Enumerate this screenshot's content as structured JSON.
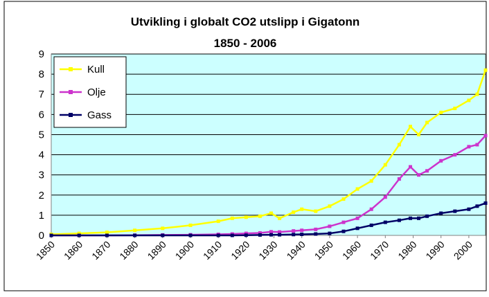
{
  "chart_data": {
    "type": "line",
    "title": "Utvikling i globalt CO2 utslipp i Gigatonn",
    "subtitle": "1850  - 2006",
    "xlabel": "",
    "ylabel": "",
    "ylim": [
      0,
      9
    ],
    "yticks": [
      "0",
      "1",
      "2",
      "3",
      "4",
      "5",
      "6",
      "7",
      "8",
      "9"
    ],
    "xlim": [
      1850,
      2006
    ],
    "xticks": [
      "1850",
      "1860",
      "1870",
      "1880",
      "1890",
      "1900",
      "1910",
      "1920",
      "1930",
      "1940",
      "1950",
      "1960",
      "1970",
      "1980",
      "1990",
      "2000"
    ],
    "grid": true,
    "legend_position": "top-left",
    "plot_background": "#ccffff",
    "x": [
      1850,
      1860,
      1870,
      1880,
      1890,
      1900,
      1910,
      1915,
      1920,
      1925,
      1929,
      1932,
      1937,
      1940,
      1945,
      1950,
      1955,
      1960,
      1965,
      1970,
      1975,
      1979,
      1982,
      1985,
      1990,
      1995,
      2000,
      2003,
      2006
    ],
    "series": [
      {
        "name": "Kull",
        "color": "#ffff00",
        "values": [
          0.05,
          0.1,
          0.15,
          0.25,
          0.35,
          0.5,
          0.7,
          0.85,
          0.9,
          0.95,
          1.1,
          0.85,
          1.15,
          1.3,
          1.2,
          1.45,
          1.8,
          2.3,
          2.7,
          3.5,
          4.5,
          5.4,
          5.0,
          5.6,
          6.1,
          6.3,
          6.7,
          7.0,
          8.2
        ]
      },
      {
        "name": "Olje",
        "color": "#cc33cc",
        "values": [
          0,
          0,
          0,
          0.01,
          0.02,
          0.03,
          0.05,
          0.07,
          0.1,
          0.12,
          0.18,
          0.17,
          0.22,
          0.25,
          0.3,
          0.45,
          0.65,
          0.85,
          1.3,
          1.9,
          2.8,
          3.4,
          3.0,
          3.2,
          3.7,
          4.0,
          4.4,
          4.5,
          4.95
        ]
      },
      {
        "name": "Gass",
        "color": "#000066",
        "values": [
          0,
          0,
          0,
          0,
          0,
          0,
          0,
          0,
          0.01,
          0.02,
          0.03,
          0.03,
          0.04,
          0.05,
          0.07,
          0.1,
          0.2,
          0.35,
          0.5,
          0.65,
          0.75,
          0.85,
          0.85,
          0.95,
          1.1,
          1.2,
          1.3,
          1.45,
          1.6
        ]
      }
    ]
  }
}
